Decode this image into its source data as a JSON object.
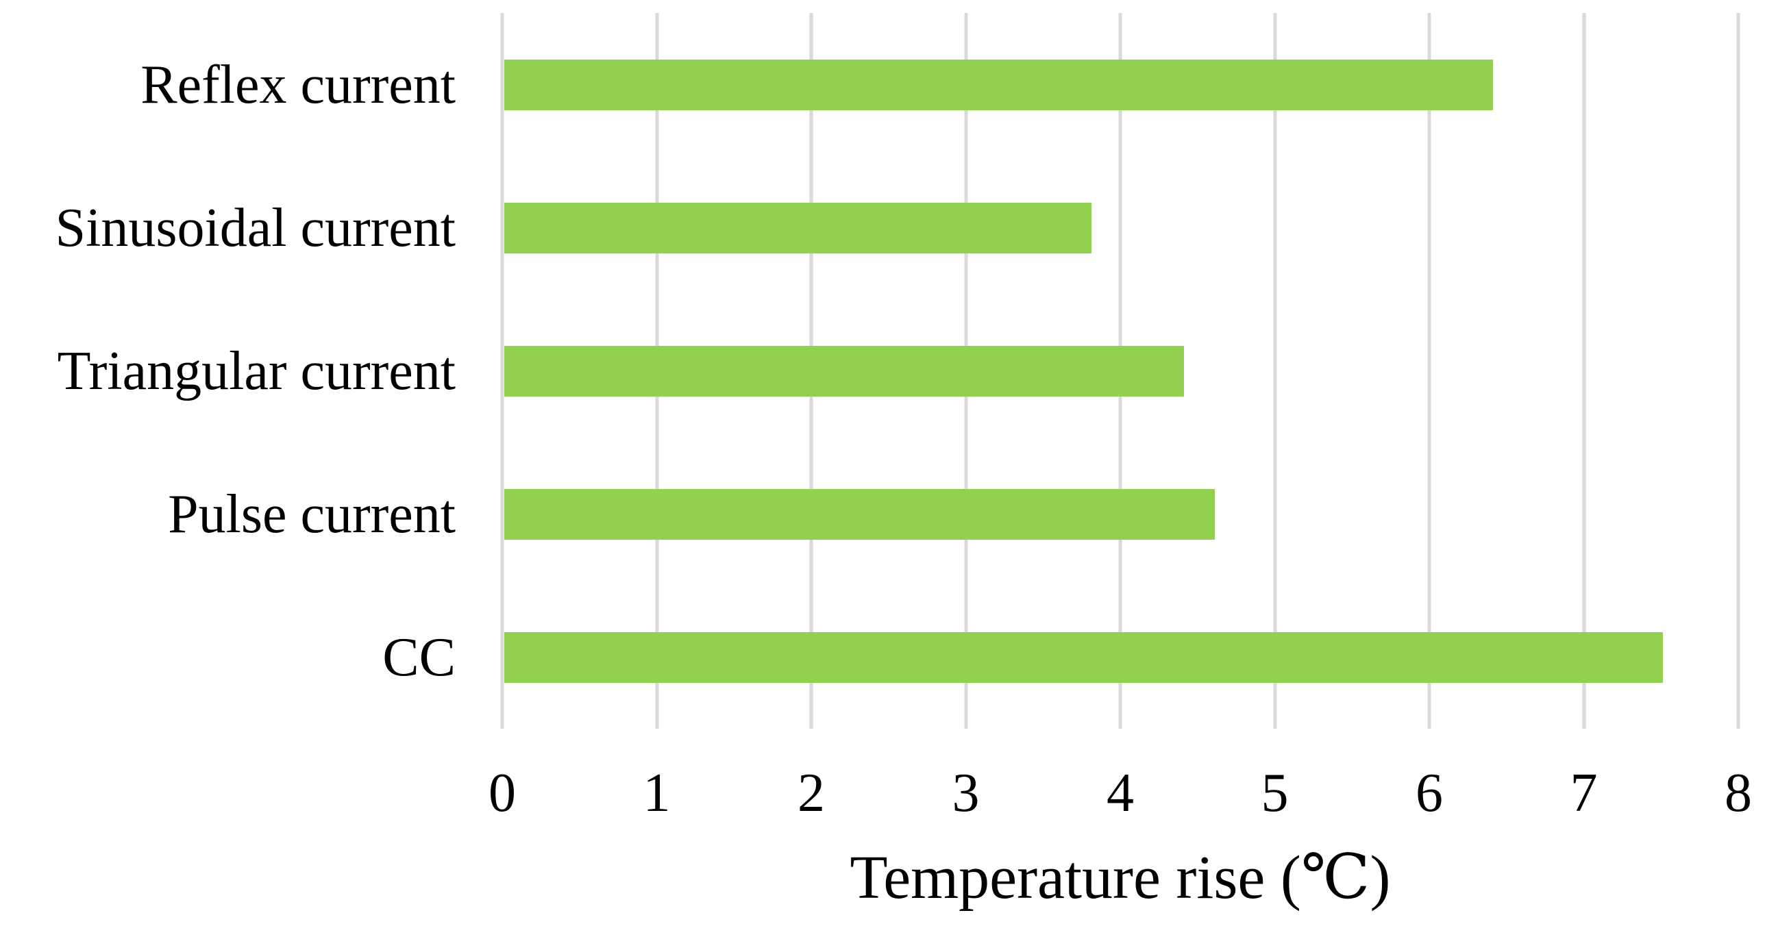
{
  "chart_data": {
    "type": "bar",
    "orientation": "horizontal",
    "categories": [
      "Reflex current",
      "Sinusoidal current",
      "Triangular current",
      "Pulse current",
      "CC"
    ],
    "values": [
      6.4,
      3.8,
      4.4,
      4.6,
      7.5
    ],
    "title": "",
    "xlabel": "Temperature rise (℃)",
    "ylabel": "",
    "xlim": [
      0,
      8
    ],
    "xticks": [
      0,
      1,
      2,
      3,
      4,
      5,
      6,
      7,
      8
    ],
    "grid": true,
    "legend": false,
    "bar_color": "#92D050",
    "gridline_color": "#D9D9D9",
    "text_color": "#000000"
  }
}
